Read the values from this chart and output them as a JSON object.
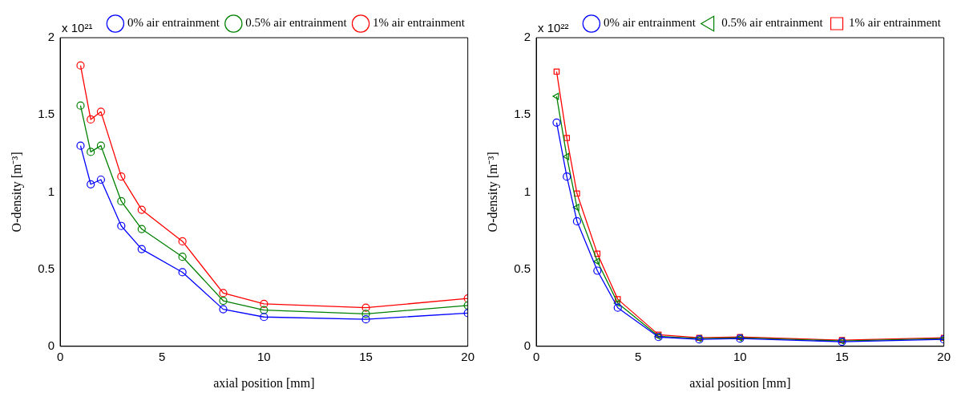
{
  "chart_data": [
    {
      "type": "line",
      "x": [
        1,
        1.5,
        2,
        3,
        4,
        6,
        8,
        10,
        15,
        20
      ],
      "xlabel": "axial position [mm]",
      "ylabel": "O-density [m⁻³]",
      "annotations": [
        "x 10²¹"
      ],
      "xlim": [
        0,
        20
      ],
      "xticks": [
        0,
        5,
        10,
        15,
        20
      ],
      "ylim": [
        0,
        2
      ],
      "yticks": [
        0,
        0.5,
        1,
        1.5,
        2
      ],
      "grid": false,
      "legend": "top right",
      "line_style": "solid",
      "series": [
        {
          "name": "0% air entrainment",
          "color": "#0000ff",
          "marker": "circle",
          "values": [
            1.3,
            1.05,
            1.08,
            0.78,
            0.63,
            0.48,
            0.24,
            0.19,
            0.175,
            0.215
          ]
        },
        {
          "name": "0.5% air entrainment",
          "color": "#008000",
          "marker": "circle",
          "values": [
            1.56,
            1.26,
            1.3,
            0.94,
            0.76,
            0.58,
            0.295,
            0.235,
            0.21,
            0.265
          ]
        },
        {
          "name": "1% air entrainment",
          "color": "#ff0000",
          "marker": "circle",
          "values": [
            1.82,
            1.47,
            1.52,
            1.1,
            0.885,
            0.68,
            0.345,
            0.275,
            0.25,
            0.31
          ]
        }
      ]
    },
    {
      "type": "line",
      "x": [
        1,
        1.5,
        2,
        3,
        4,
        6,
        8,
        10,
        15,
        20
      ],
      "xlabel": "axial position [mm]",
      "ylabel": "O-density [m⁻³]",
      "annotations": [
        "x 10²²"
      ],
      "xlim": [
        0,
        20
      ],
      "xticks": [
        0,
        5,
        10,
        15,
        20
      ],
      "ylim": [
        0,
        2
      ],
      "yticks": [
        0,
        0.5,
        1,
        1.5,
        2
      ],
      "grid": false,
      "legend": "top right",
      "line_style": "solid",
      "series": [
        {
          "name": "0% air entrainment",
          "color": "#0000ff",
          "marker": "circle",
          "values": [
            1.45,
            1.1,
            0.81,
            0.49,
            0.25,
            0.06,
            0.045,
            0.05,
            0.03,
            0.045
          ]
        },
        {
          "name": "0.5% air entrainment",
          "color": "#008000",
          "marker": "triangle",
          "values": [
            1.62,
            1.23,
            0.9,
            0.55,
            0.28,
            0.065,
            0.05,
            0.055,
            0.035,
            0.05
          ]
        },
        {
          "name": "1% air entrainment",
          "color": "#ff0000",
          "marker": "square",
          "values": [
            1.78,
            1.35,
            0.99,
            0.6,
            0.305,
            0.075,
            0.055,
            0.06,
            0.04,
            0.055
          ]
        }
      ]
    }
  ]
}
